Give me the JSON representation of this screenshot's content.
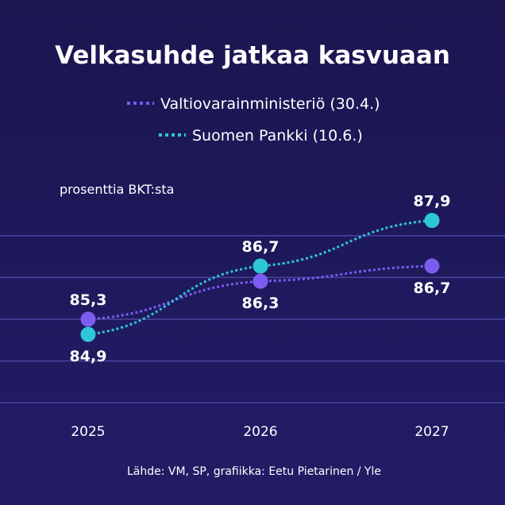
{
  "chart_data": {
    "type": "line",
    "title": "Velkasuhde jatkaa kasvuaan",
    "ylabel": "prosenttia  BKT:sta",
    "x": [
      "2025",
      "2026",
      "2027"
    ],
    "ylim": [
      82.5,
      89.0
    ],
    "grid": true,
    "legend": "top-center",
    "series": [
      {
        "name": "Valtiovarainministeriö (30.4.)",
        "color": "#7b5cf0",
        "values": [
          85.3,
          86.3,
          86.7
        ],
        "labels": [
          "85,3",
          "86,3",
          "86,7"
        ]
      },
      {
        "name": "Suomen Pankki (10.6.)",
        "color": "#2ec7d8",
        "values": [
          84.9,
          86.7,
          87.9
        ],
        "labels": [
          "84,9",
          "86,7",
          "87,9"
        ]
      }
    ],
    "source": "Lähde: VM, SP, grafiikka: Eetu Pietarinen / Yle"
  }
}
